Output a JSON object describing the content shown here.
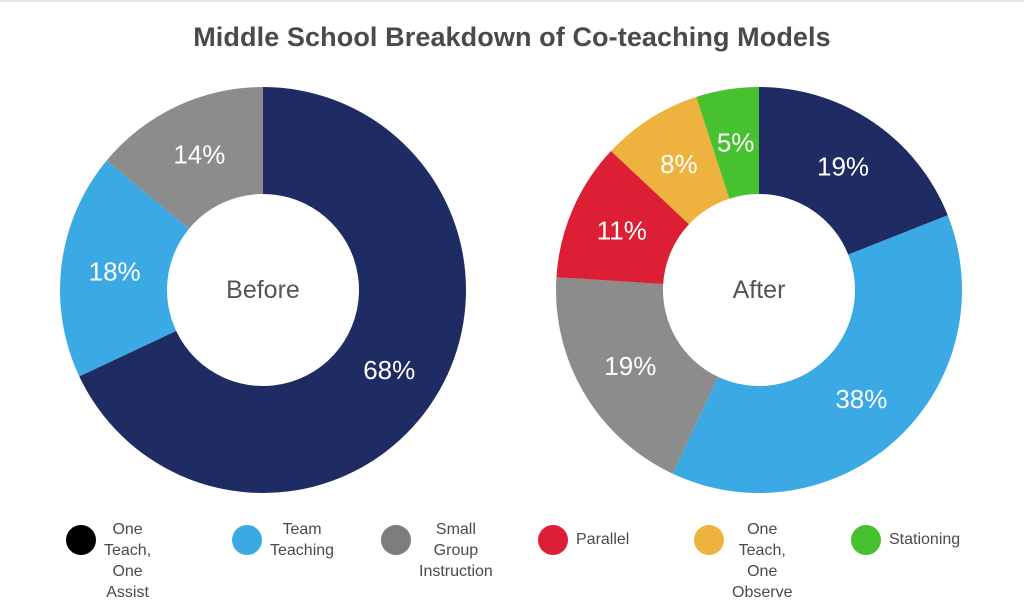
{
  "chart_data": {
    "type": "pie",
    "title": "Middle School Breakdown of Co-teaching Models",
    "categories": [
      "One Teach, One Assist",
      "Team Teaching",
      "Small Group Instruction",
      "Parallel",
      "One Teach, One Observe",
      "Stationing"
    ],
    "colors": [
      "#1f2c63",
      "#3aa9e4",
      "#8c8c8c",
      "#dc1f35",
      "#edb33e",
      "#47c12f"
    ],
    "legend_position": "bottom",
    "donut": true,
    "charts": [
      {
        "center_label": "Before",
        "slices": [
          {
            "category": "One Teach, One Assist",
            "value": 68,
            "label": "68%"
          },
          {
            "category": "Team Teaching",
            "value": 18,
            "label": "18%"
          },
          {
            "category": "Small Group Instruction",
            "value": 14,
            "label": "14%"
          }
        ]
      },
      {
        "center_label": "After",
        "slices": [
          {
            "category": "One Teach, One Assist",
            "value": 19,
            "label": "19%"
          },
          {
            "category": "Team Teaching",
            "value": 38,
            "label": "38%"
          },
          {
            "category": "Small Group Instruction",
            "value": 19,
            "label": "19%"
          },
          {
            "category": "Parallel",
            "value": 11,
            "label": "11%"
          },
          {
            "category": "One Teach, One Observe",
            "value": 8,
            "label": "8%"
          },
          {
            "category": "Stationing",
            "value": 5,
            "label": "5%"
          }
        ]
      }
    ],
    "legend": [
      {
        "label": "One Teach,\nOne Assist",
        "color": "#000000"
      },
      {
        "label": "Team\nTeaching",
        "color": "#3aa9e4"
      },
      {
        "label": "Small Group\nInstruction",
        "color": "#7d7d7d"
      },
      {
        "label": "Parallel",
        "color": "#dc1f35"
      },
      {
        "label": "One Teach,\nOne Observe",
        "color": "#edb33e"
      },
      {
        "label": "Stationing",
        "color": "#47c12f"
      }
    ]
  }
}
